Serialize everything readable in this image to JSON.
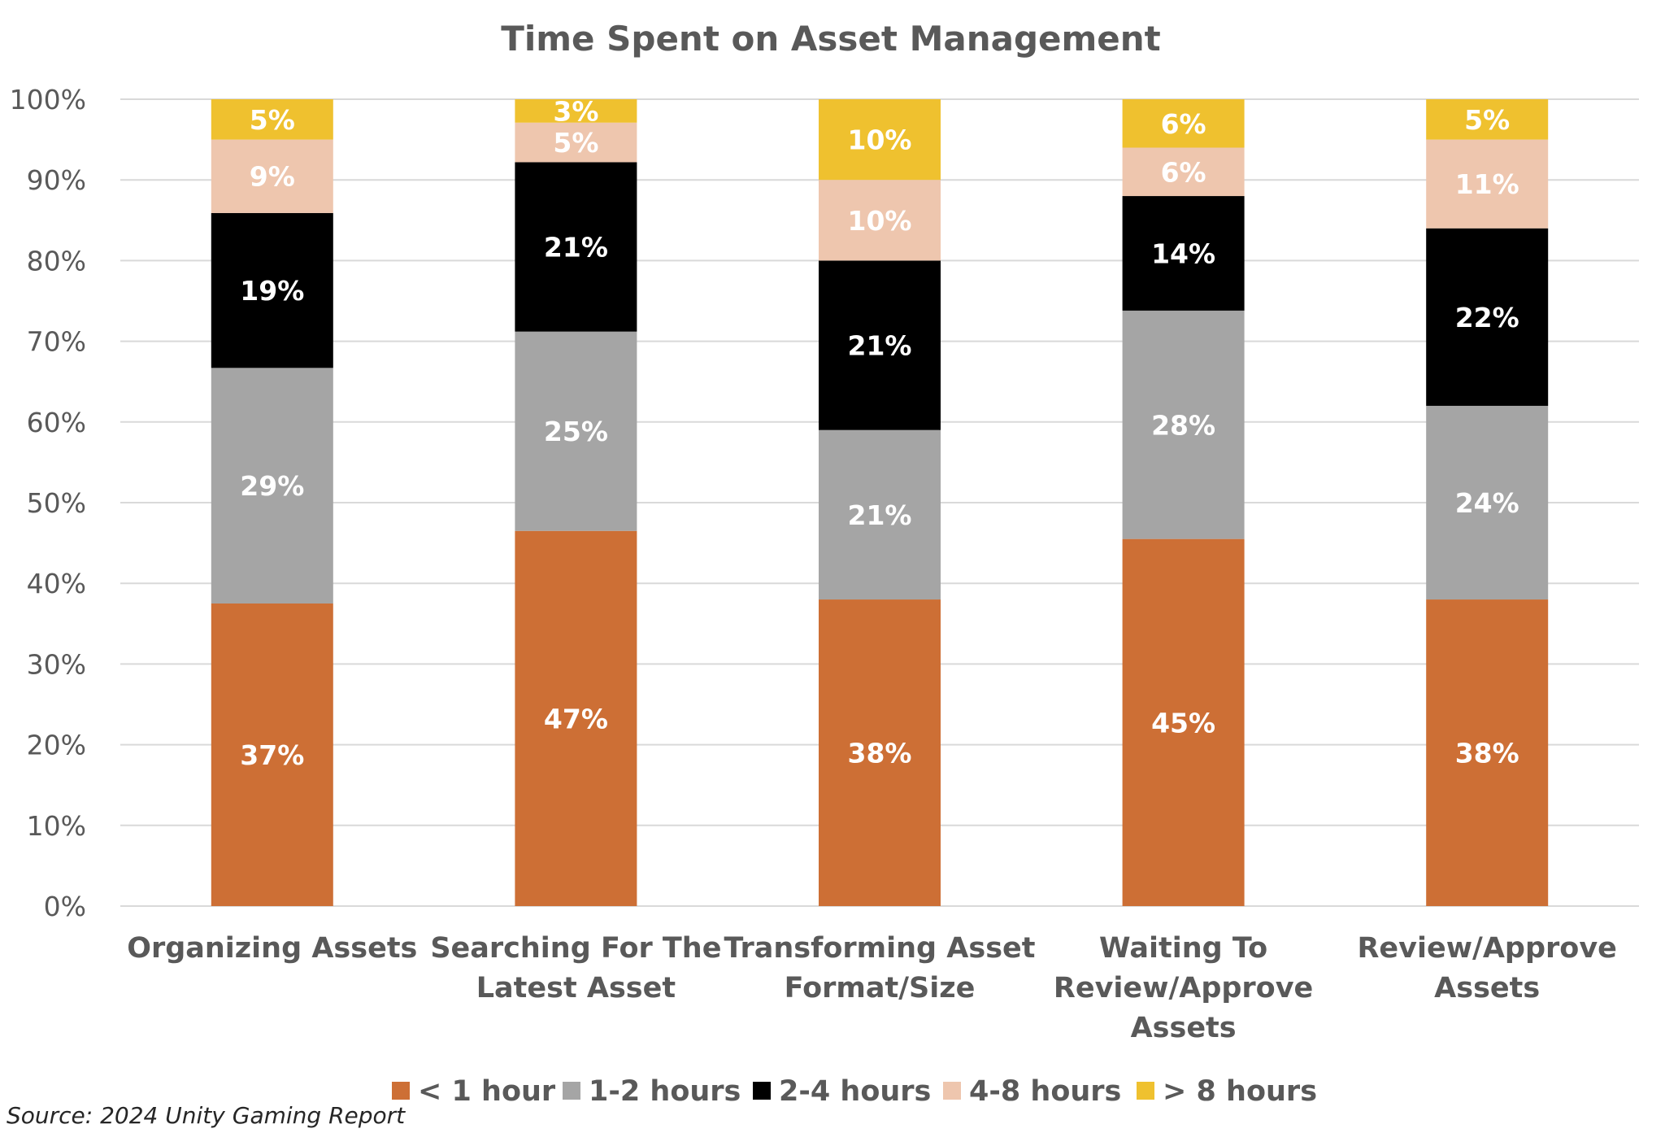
{
  "chart_data": {
    "type": "bar",
    "stacked": true,
    "title": "Time Spent on  Asset Management",
    "categories": [
      [
        "Organizing Assets"
      ],
      [
        "Searching For The",
        "Latest Asset"
      ],
      [
        "Transforming Asset",
        "Format/Size"
      ],
      [
        "Waiting To",
        "Review/Approve",
        "Assets"
      ],
      [
        "Review/Approve",
        "Assets"
      ]
    ],
    "series": [
      {
        "name": "< 1 hour",
        "color": "#CD6F35",
        "label_color": "#ffffff",
        "values": [
          37.5,
          46.5,
          38,
          45.5,
          38
        ],
        "labels": [
          "37%",
          "47%",
          "38%",
          "45%",
          "38%"
        ]
      },
      {
        "name": "1-2 hours",
        "color": "#A5A5A5",
        "label_color": "#ffffff",
        "values": [
          29.2,
          24.7,
          21,
          28.3,
          24
        ],
        "labels": [
          "29%",
          "25%",
          "21%",
          "28%",
          "24%"
        ]
      },
      {
        "name": "2-4 hours",
        "color": "#000000",
        "label_color": "#ffffff",
        "values": [
          19.2,
          21,
          21,
          14.2,
          22
        ],
        "labels": [
          "19%",
          "21%",
          "21%",
          "14%",
          "22%"
        ]
      },
      {
        "name": "4-8 hours",
        "color": "#EEC6AE",
        "label_color": "#ffffff",
        "values": [
          9.1,
          4.9,
          10,
          6,
          11
        ],
        "labels": [
          "9%",
          "5%",
          "10%",
          "6%",
          "11%"
        ]
      },
      {
        "name": "> 8 hours",
        "color": "#EFC12F",
        "label_color": "#ffffff",
        "values": [
          5,
          2.9,
          10,
          6,
          5
        ],
        "labels": [
          "5%",
          "3%",
          "10%",
          "6%",
          "5%"
        ]
      }
    ],
    "ylim": [
      0,
      100
    ],
    "yticks": [
      "0%",
      "10%",
      "20%",
      "30%",
      "40%",
      "50%",
      "60%",
      "70%",
      "80%",
      "90%",
      "100%"
    ],
    "grid": true,
    "gridline_color": "#D9D9D9",
    "legend_position": "bottom",
    "source": "Source: 2024 Unity Gaming Report"
  }
}
